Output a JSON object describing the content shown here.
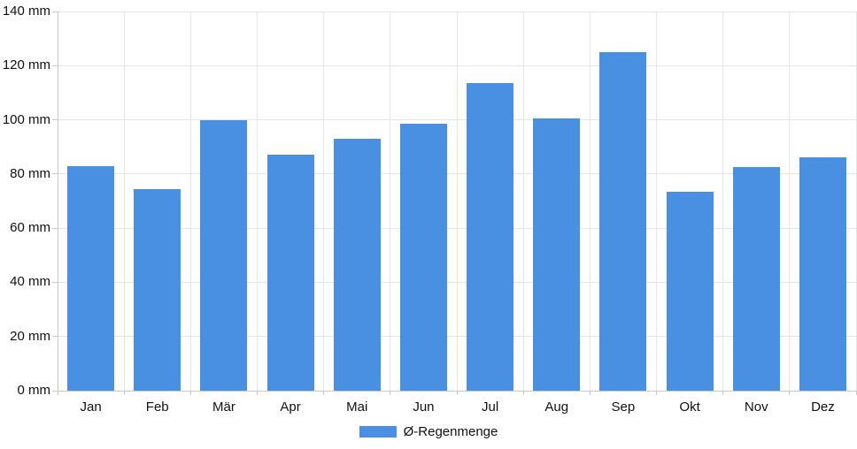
{
  "colors": {
    "bar": "#4a90e2",
    "grid": "#e6e6e6",
    "axis": "#c9c9c9",
    "text": "#111111",
    "background": "#ffffff"
  },
  "chart_data": {
    "type": "bar",
    "title": "",
    "categories": [
      "Jan",
      "Feb",
      "Mär",
      "Apr",
      "Mai",
      "Jun",
      "Jul",
      "Aug",
      "Sep",
      "Okt",
      "Nov",
      "Dez"
    ],
    "series": [
      {
        "name": "Ø-Regenmenge",
        "values": [
          83,
          74.5,
          100,
          87,
          93,
          98.5,
          113.5,
          100.5,
          125,
          73.5,
          82.5,
          86
        ]
      }
    ],
    "unit": "mm",
    "xlabel": "",
    "ylabel": "",
    "ylim": [
      0,
      140
    ],
    "ytick_step": 20,
    "ytick_labels": [
      "0 mm",
      "20 mm",
      "40 mm",
      "60 mm",
      "80 mm",
      "100 mm",
      "120 mm",
      "140 mm"
    ],
    "grid": true,
    "legend_position": "bottom"
  }
}
